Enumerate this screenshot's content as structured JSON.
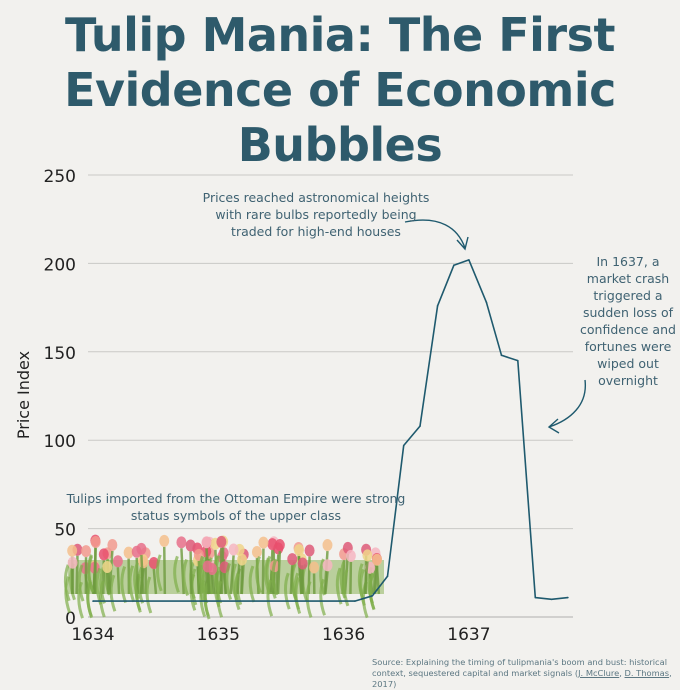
{
  "title": "Tulip Mania: The First Evidence of Economic Bubbles",
  "colors": {
    "line": "#1f5a6e",
    "title": "#2e5a6b",
    "grid": "#c9c9c6",
    "background": "#f2f1ee"
  },
  "chart_data": {
    "type": "line",
    "title": "Tulip Mania: The First Evidence of Economic Bubbles",
    "xlabel": "",
    "ylabel": "Price Index",
    "ylim": [
      0,
      250
    ],
    "xlim": [
      1634,
      1637.8
    ],
    "yticks": [
      0,
      50,
      100,
      150,
      200,
      250
    ],
    "xticks": [
      "1634",
      "1635",
      "1636",
      "1637"
    ],
    "grid": "horizontal",
    "x": [
      1634.0,
      1636.09,
      1636.23,
      1636.35,
      1636.48,
      1636.61,
      1636.75,
      1636.88,
      1637.0,
      1637.14,
      1637.26,
      1637.39,
      1637.53,
      1637.66,
      1637.79
    ],
    "values": [
      9,
      9,
      12,
      23,
      97,
      108,
      176,
      199,
      202,
      178,
      148,
      145,
      11,
      10,
      11
    ],
    "annotations": [
      "Prices reached astronomical heights with rare bulbs reportedly being traded for high-end houses",
      "In 1637, a market crash triggered a sudden loss of confidence and fortunes were wiped out overnight",
      "Tulips imported from the Ottoman Empire were strong status symbols of the upper class"
    ]
  },
  "source": {
    "prefix": "Source: Explaining the timing of tulipmania's boom and bust: historical context, sequestered capital and market signals (",
    "author1": "J. McClure",
    "sep": ", ",
    "author2": "D. Thomas",
    "suffix": ", 2017)"
  }
}
